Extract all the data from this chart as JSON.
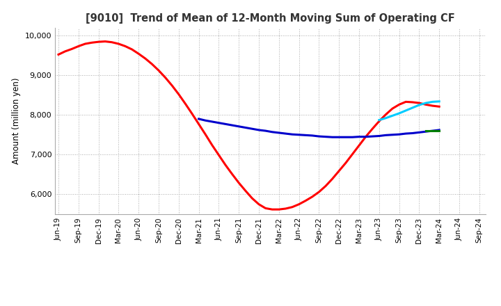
{
  "title": "[9010]  Trend of Mean of 12-Month Moving Sum of Operating CF",
  "ylabel": "Amount (million yen)",
  "ylim": [
    5500,
    10200
  ],
  "yticks": [
    6000,
    7000,
    8000,
    9000,
    10000
  ],
  "background_color": "#ffffff",
  "grid_color": "#aaaaaa",
  "series": {
    "3years": {
      "color": "#ff0000",
      "x": [
        0,
        1,
        2,
        3,
        4,
        5,
        6,
        7,
        8,
        9,
        10,
        11,
        12,
        13,
        14,
        15,
        16,
        17,
        18,
        19,
        20,
        21,
        22,
        23,
        24,
        25,
        26,
        27,
        28,
        29,
        30,
        31,
        32,
        33,
        34,
        35,
        36,
        37,
        38,
        39,
        40,
        41,
        42,
        43,
        44,
        45,
        46,
        47,
        48,
        49,
        50,
        51,
        52,
        53,
        54,
        55,
        56,
        57
      ],
      "y": [
        9520,
        9600,
        9660,
        9730,
        9790,
        9820,
        9840,
        9850,
        9830,
        9790,
        9730,
        9650,
        9540,
        9420,
        9280,
        9120,
        8940,
        8740,
        8520,
        8280,
        8030,
        7770,
        7510,
        7240,
        6990,
        6740,
        6510,
        6290,
        6090,
        5900,
        5750,
        5650,
        5620,
        5620,
        5640,
        5680,
        5750,
        5840,
        5940,
        6060,
        6210,
        6390,
        6590,
        6790,
        7010,
        7230,
        7450,
        7650,
        7840,
        8010,
        8160,
        8260,
        8330,
        8320,
        8300,
        8260,
        8230,
        8210
      ]
    },
    "5years": {
      "color": "#0000cc",
      "x": [
        21,
        22,
        23,
        24,
        25,
        26,
        27,
        28,
        29,
        30,
        31,
        32,
        33,
        34,
        35,
        36,
        37,
        38,
        39,
        40,
        41,
        42,
        43,
        44,
        45,
        46,
        47,
        48,
        49,
        50,
        51,
        52,
        53,
        54,
        55,
        56,
        57
      ],
      "y": [
        7900,
        7860,
        7830,
        7800,
        7770,
        7740,
        7710,
        7680,
        7650,
        7620,
        7600,
        7570,
        7550,
        7530,
        7510,
        7500,
        7490,
        7480,
        7460,
        7450,
        7440,
        7440,
        7440,
        7440,
        7450,
        7450,
        7460,
        7470,
        7490,
        7500,
        7510,
        7530,
        7540,
        7560,
        7580,
        7600,
        7620
      ]
    },
    "7years": {
      "color": "#00ccff",
      "x": [
        48,
        49,
        50,
        51,
        52,
        53,
        54,
        55,
        56,
        57
      ],
      "y": [
        7870,
        7920,
        7980,
        8040,
        8110,
        8180,
        8250,
        8300,
        8330,
        8340
      ]
    },
    "10years": {
      "color": "#008000",
      "x": [
        55,
        56,
        57
      ],
      "y": [
        7600,
        7600,
        7600
      ]
    }
  },
  "xtick_labels": [
    "Jun-19",
    "Sep-19",
    "Dec-19",
    "Mar-20",
    "Jun-20",
    "Sep-20",
    "Dec-20",
    "Mar-21",
    "Jun-21",
    "Sep-21",
    "Dec-21",
    "Mar-22",
    "Jun-22",
    "Sep-22",
    "Dec-22",
    "Mar-23",
    "Jun-23",
    "Sep-23",
    "Dec-23",
    "Mar-24",
    "Jun-24",
    "Sep-24"
  ],
  "xtick_positions": [
    0,
    3,
    6,
    9,
    12,
    15,
    18,
    21,
    24,
    27,
    30,
    33,
    36,
    39,
    42,
    45,
    48,
    51,
    54,
    57,
    60,
    63
  ]
}
